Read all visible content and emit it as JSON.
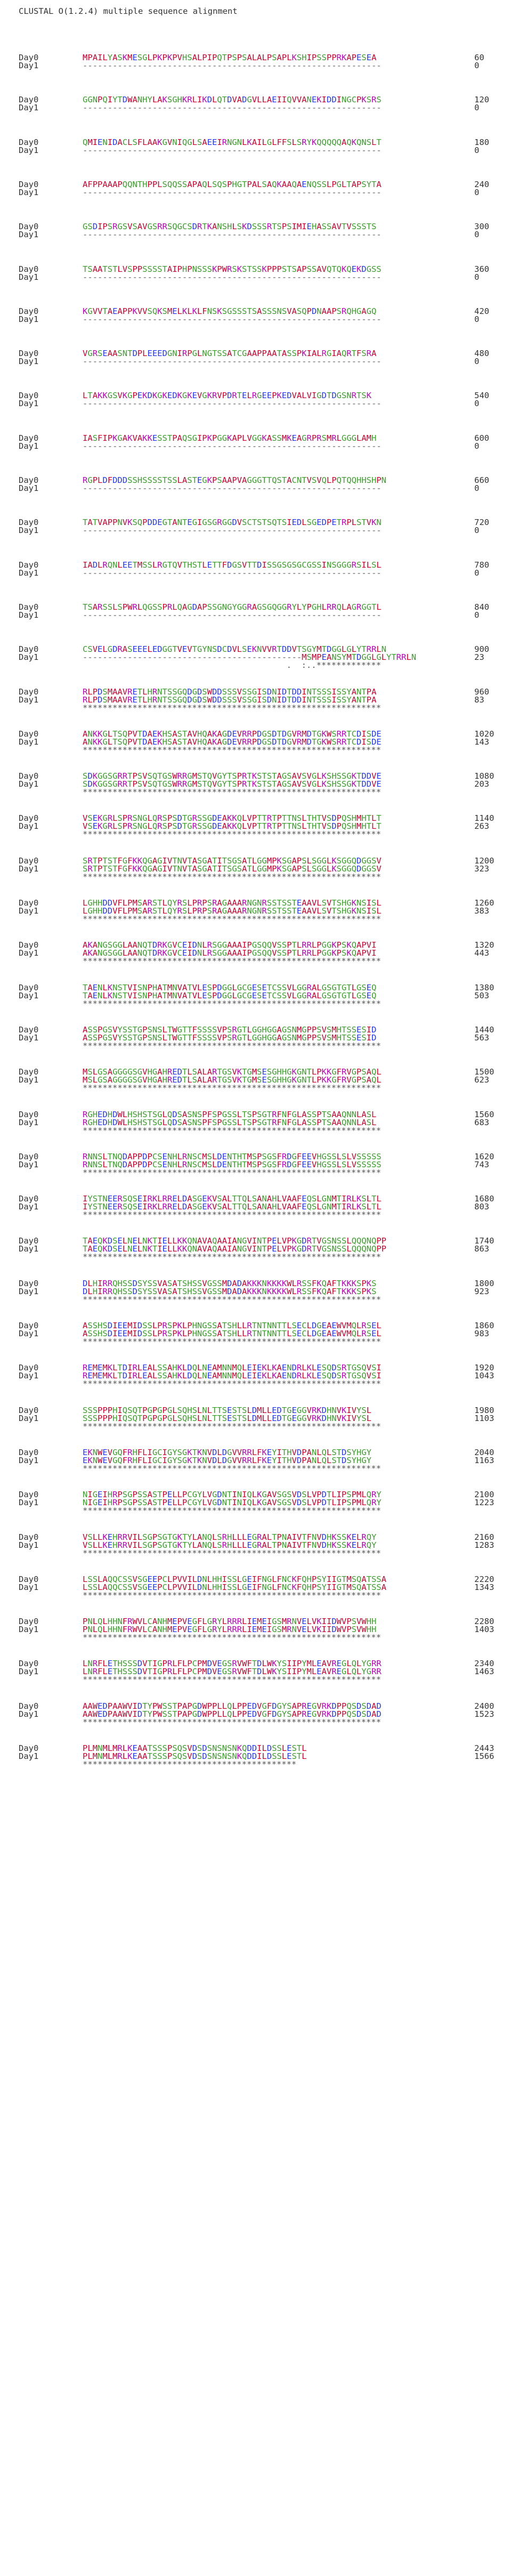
{
  "title": "CLUSTAL O(1.2.4) multiple sequence alignment",
  "residue_colors": {
    "hydrophobic": "#d1002b",
    "basic": "#c000c0",
    "acidic": "#2236ff",
    "polar": "#3aa02a",
    "gap": "#666666"
  },
  "blocks": [
    {
      "rows": [
        {
          "name": "Day0",
          "seq": "MPAILYASKMESGLPKPKPVHSALPIPQTPSPSALALPSAPLKSHIPSSPPRKAPESEA",
          "count": "60"
        },
        {
          "name": "Day1",
          "seq": "------------------------------------------------------------",
          "count": "0"
        }
      ],
      "consensus": ""
    },
    {
      "rows": [
        {
          "name": "Day0",
          "seq": "GGNPQIYTDWANHYLAKSGHKRLIKDLQTDVADGVLLAEIIQVVANEKIDDINGCPKSRS",
          "count": "120"
        },
        {
          "name": "Day1",
          "seq": "------------------------------------------------------------",
          "count": "0"
        }
      ],
      "consensus": ""
    },
    {
      "rows": [
        {
          "name": "Day0",
          "seq": "QMIENIDACLSFLAAKGVNIQGLSAEEIRNGNLKAILGLFFSLSRYKQQQQQAQKQNSLT",
          "count": "180"
        },
        {
          "name": "Day1",
          "seq": "------------------------------------------------------------",
          "count": "0"
        }
      ],
      "consensus": ""
    },
    {
      "rows": [
        {
          "name": "Day0",
          "seq": "AFPPAAAPQQNTHPPLSQQSSAPAQLSQSPHGTPALSAQKAAQAENQSSLPGLTAPSYTA",
          "count": "240"
        },
        {
          "name": "Day1",
          "seq": "------------------------------------------------------------",
          "count": "0"
        }
      ],
      "consensus": ""
    },
    {
      "rows": [
        {
          "name": "Day0",
          "seq": "GSDIPSRGSVSAVGSRRSQGCSDRTKANSHLSKDSSSRTSPSIMIEHASSAVTVSSSTS",
          "count": "300"
        },
        {
          "name": "Day1",
          "seq": "------------------------------------------------------------",
          "count": "0"
        }
      ],
      "consensus": ""
    },
    {
      "rows": [
        {
          "name": "Day0",
          "seq": "TSAATSTLVSPPSSSSTAIPHPNSSSKPWRSKSTSSKPPPSTSAPSSAVQTQKQEKDGSS",
          "count": "360"
        },
        {
          "name": "Day1",
          "seq": "------------------------------------------------------------",
          "count": "0"
        }
      ],
      "consensus": ""
    },
    {
      "rows": [
        {
          "name": "Day0",
          "seq": "KGVVTAEAPPKVVSQKSMELKLKLFNSKSGSSSTSASSSNSVASQPDNAAPSRQHGAGQ",
          "count": "420"
        },
        {
          "name": "Day1",
          "seq": "------------------------------------------------------------",
          "count": "0"
        }
      ],
      "consensus": ""
    },
    {
      "rows": [
        {
          "name": "Day0",
          "seq": "VGRSEAASNTDPLEEEDGNIRPGLNGTSSATCGAAPPAATASSPKIALRGIAQRTFSRA",
          "count": "480"
        },
        {
          "name": "Day1",
          "seq": "------------------------------------------------------------",
          "count": "0"
        }
      ],
      "consensus": ""
    },
    {
      "rows": [
        {
          "name": "Day0",
          "seq": "LTAKKGSVKGPEKDKGKEDKGKEVGKRVPDRTELRGEEPKEDVALVIGDTDGSNRTSK",
          "count": "540"
        },
        {
          "name": "Day1",
          "seq": "------------------------------------------------------------",
          "count": "0"
        }
      ],
      "consensus": ""
    },
    {
      "rows": [
        {
          "name": "Day0",
          "seq": "IASFIPKGAKVAKKESSTPAQSGIPKPGGKAPLVGGKASSMKEAGRPRSMRLGGGLAMH",
          "count": "600"
        },
        {
          "name": "Day1",
          "seq": "------------------------------------------------------------",
          "count": "0"
        }
      ],
      "consensus": ""
    },
    {
      "rows": [
        {
          "name": "Day0",
          "seq": "RGPLDFDDDSSHSSSSTSSLASTEGKPSAAPVAGGGTTQSTACNTVSVQLPQTQQHHSHPN",
          "count": "660"
        },
        {
          "name": "Day1",
          "seq": "------------------------------------------------------------",
          "count": "0"
        }
      ],
      "consensus": ""
    },
    {
      "rows": [
        {
          "name": "Day0",
          "seq": "TATVAPPNVKSQPDDEGTANTEGIGSGRGGDVSCTSTSQTSIEDLSGEDPETRPLSTVKN",
          "count": "720"
        },
        {
          "name": "Day1",
          "seq": "------------------------------------------------------------",
          "count": "0"
        }
      ],
      "consensus": ""
    },
    {
      "rows": [
        {
          "name": "Day0",
          "seq": "IADLRQNLEETMSSLRGTQVTHSTLETTFDGSVTTDISSGSGSGCGSSINSGGGRSILSL",
          "count": "780"
        },
        {
          "name": "Day1",
          "seq": "------------------------------------------------------------",
          "count": "0"
        }
      ],
      "consensus": ""
    },
    {
      "rows": [
        {
          "name": "Day0",
          "seq": "TSARSSLSPWRLQGSSPRLQAGDAPSSGNGYGGRAGSGQGGRYLYPGHLRRQLAGRGGTL",
          "count": "840",
          "hidden_mark": ""
        },
        {
          "name": "Day1",
          "seq": "------------------------------------------------------------",
          "count": "0"
        }
      ],
      "consensus": ""
    },
    {
      "rows": [
        {
          "name": "Day0",
          "seq": "CSVELGDRASEEELEDGGTVEVTGYNSDCDVLSEKNVVRTDDVTSGYMTDGGLGLYTRRLN",
          "count": "900"
        },
        {
          "name": "Day1",
          "seq": "--------------------------------------------MSMPEANSYMTDGGLGLYTRRLN",
          "count": "23"
        }
      ],
      "consensus": "                                         .  :..*************"
    },
    {
      "rows": [
        {
          "name": "Day0",
          "seq": "RLPDSMAAVRETLHRNTSSGQDGDSWDDSSSVSSGISDNIDTDDINTSSSISSYANTPA",
          "count": "960"
        },
        {
          "name": "Day1",
          "seq": "RLPDSMAAVRETLHRNTSSGQDGDSWDDSSSVSSGISDNIDTDDINTSSSISSYANTPA",
          "count": "83"
        }
      ],
      "consensus": "************************************************************"
    },
    {
      "rows": [
        {
          "name": "Day0",
          "seq": "ANKKGLTSQPVTDAEKHSASTAVHQAKAGDEVRRPDGSDTDGVRMDTGKWSRRTCDISDE",
          "count": "1020"
        },
        {
          "name": "Day1",
          "seq": "ANKKGLTSQPVTDAEKHSASTAVHQAKAGDEVRRPDGSDTDGVRMDTGKWSRRTCDISDE",
          "count": "143"
        }
      ],
      "consensus": "************************************************************"
    },
    {
      "rows": [
        {
          "name": "Day0",
          "seq": "SDKGGSGRRTPSVSQTGSWRRGMSTQVGYTSPRTKSTSTAGSAVSVGLKSHSSGKTDDVE",
          "count": "1080"
        },
        {
          "name": "Day1",
          "seq": "SDKGGSGRRTPSVSQTGSWRRGMSTQVGYTSPRTKSTSTAGSAVSVGLKSHSSGKTDDVE",
          "count": "203"
        }
      ],
      "consensus": "************************************************************"
    },
    {
      "rows": [
        {
          "name": "Day0",
          "seq": "VSEKGRLSPRSNGLQRSPSDTGRSSGDEAKKQLVPTTRTPTTNSLTHTVSDPQSHMHTLT",
          "count": "1140"
        },
        {
          "name": "Day1",
          "seq": "VSEKGRLSPRSNGLQRSPSDTGRSSGDEAKKQLVPTTRTPTTNSLTHTVSDPQSHMHTLT",
          "count": "263"
        }
      ],
      "consensus": "************************************************************"
    },
    {
      "rows": [
        {
          "name": "Day0",
          "seq": "SRTPTSTFGFKKQGAGIVTNVTASGATITSGSATLGGMPKSGAPSLSGGLKSGGQDGGSV",
          "count": "1200"
        },
        {
          "name": "Day1",
          "seq": "SRTPTSTFGFKKQGAGIVTNVTASGATITSGSATLGGMPKSGAPSLSGGLKSGGQDGGSV",
          "count": "323"
        }
      ],
      "consensus": "************************************************************"
    },
    {
      "rows": [
        {
          "name": "Day0",
          "seq": "LGHHDDVFLPMSARSTLQYRSLPRPSRAGAAARNGNRSSTSSTEAAVLSVTSHGKNSISL",
          "count": "1260"
        },
        {
          "name": "Day1",
          "seq": "LGHHDDVFLPMSARSTLQYRSLPRPSRAGAAARNGNRSSTSSTEAAVLSVTSHGKNSISL",
          "count": "383"
        }
      ],
      "consensus": "************************************************************"
    },
    {
      "rows": [
        {
          "name": "Day0",
          "seq": "AKANGSGGLAANQTDRKGVCEIDNLRSGGAAAIPGSQQVSSPTLRRLPGGKPSKQAPVI",
          "count": "1320"
        },
        {
          "name": "Day1",
          "seq": "AKANGSGGLAANQTDRKGVCEIDNLRSGGAAAIPGSQQVSSPTLRRLPGGKPSKQAPVI",
          "count": "443"
        }
      ],
      "consensus": "************************************************************"
    },
    {
      "rows": [
        {
          "name": "Day0",
          "seq": "TAENLKNSTVISNPHATMNVATVLESPDGGLGCGESETCSSVLGGRALGSGTGTLGSEQ",
          "count": "1380"
        },
        {
          "name": "Day1",
          "seq": "TAENLKNSTVISNPHATMNVATVLESPDGGLGCGESETCSSVLGGRALGSGTGTLGSEQ",
          "count": "503"
        }
      ],
      "consensus": "************************************************************"
    },
    {
      "rows": [
        {
          "name": "Day0",
          "seq": "ASSPGSVYSSTGPSNSLTWGTTFSSSSVPSRGTLGGHGGAGSNMGPPSVSMHTSSESID",
          "count": "1440"
        },
        {
          "name": "Day1",
          "seq": "ASSPGSVYSSTGPSNSLTWGTTFSSSSVPSRGTLGGHGGAGSNMGPPSVSMHTSSESID",
          "count": "563"
        }
      ],
      "consensus": "************************************************************"
    },
    {
      "rows": [
        {
          "name": "Day0",
          "seq": "MSLGSAGGGGSGVHGAHREDTLSALARTGSVKTGMSESGHHGKGNTLPKKGFRVGPSAQL",
          "count": "1500"
        },
        {
          "name": "Day1",
          "seq": "MSLGSAGGGGSGVHGAHREDTLSALARTGSVKTGMSESGHHGKGNTLPKKGFRVGPSAQL",
          "count": "623"
        }
      ],
      "consensus": "************************************************************"
    },
    {
      "rows": [
        {
          "name": "Day0",
          "seq": "RGHEDHDWLHSHSTSGLQDSASNSPFSPGSSLTSPSGTRFNFGLASSPTSAAQNNLASL",
          "count": "1560"
        },
        {
          "name": "Day1",
          "seq": "RGHEDHDWLHSHSTSGLQDSASNSPFSPGSSLTSPSGTRFNFGLASSPTSAAQNNLASL",
          "count": "683"
        }
      ],
      "consensus": "************************************************************"
    },
    {
      "rows": [
        {
          "name": "Day0",
          "seq": "RNNSLTNQDAPPDPCSENHLRNSCMSLDENTHTMSPSGSFRDGFEEVHGSSLSLVSSSSS",
          "count": "1620"
        },
        {
          "name": "Day1",
          "seq": "RNNSLTNQDAPPDPCSENHLRNSCMSLDENTHTMSPSGSFRDGFEEVHGSSLSLVSSSSS",
          "count": "743"
        }
      ],
      "consensus": "************************************************************"
    },
    {
      "rows": [
        {
          "name": "Day0",
          "seq": "IYSTNEERSQSEIRKLRRELDASGEKVSALTTQLSANAHLVAAFEQSLGNMTIRLKSLTL",
          "count": "1680"
        },
        {
          "name": "Day1",
          "seq": "IYSTNEERSQSEIRKLRRELDASGEKVSALTTQLSANAHLVAAFEQSLGNMTIRLKSLTL",
          "count": "803"
        }
      ],
      "consensus": "************************************************************"
    },
    {
      "rows": [
        {
          "name": "Day0",
          "seq": "TAEQKDSELNELNKTIELLKKQNAVAQAAIANGVINTPELVPKGDRTVGSNSSLQQQNQPP",
          "count": "1740"
        },
        {
          "name": "Day1",
          "seq": "TAEQKDSELNELNKTIELLKKQNAVAQAAIANGVINTPELVPKGDRTVGSNSSLQQQNQPP",
          "count": "863"
        }
      ],
      "consensus": "************************************************************"
    },
    {
      "rows": [
        {
          "name": "Day0",
          "seq": "DLHIRRQHSSDSYSSVASATSHSSVGSSMDADAKKKNKKKKWLRSSFKQAFTKKKSPKS",
          "count": "1800"
        },
        {
          "name": "Day1",
          "seq": "DLHIRRQHSSDSYSSVASATSHSSVGSSMDADAKKKNKKKKWLRSSFKQAFTKKKSPKS",
          "count": "923"
        }
      ],
      "consensus": "************************************************************"
    },
    {
      "rows": [
        {
          "name": "Day0",
          "seq": "ASSHSDIEEMIDSSLPRSPKLPHNGSSATSHLLRTNTNNTTLSECLDGEAEWVMQLRSEL",
          "count": "1860"
        },
        {
          "name": "Day1",
          "seq": "ASSHSDIEEMIDSSLPRSPKLPHNGSSATSHLLRTNTNNTTLSECLDGEAEWVMQLRSEL",
          "count": "983"
        }
      ],
      "consensus": "************************************************************"
    },
    {
      "rows": [
        {
          "name": "Day0",
          "seq": "REMEMKLTDIRLEALSSAHKLDQLNEAMNNMQLEIEKLKAENDRLKLESQDSRTGSQVSI",
          "count": "1920"
        },
        {
          "name": "Day1",
          "seq": "REMEMKLTDIRLEALSSAHKLDQLNEAMNNMQLEIEKLKAENDRLKLESQDSRTGSQVSI",
          "count": "1043"
        }
      ],
      "consensus": "************************************************************"
    },
    {
      "rows": [
        {
          "name": "Day0",
          "seq": "SSSPPPHIQSQTPGPGPGLSQHSLNLTTSESTSLDMLLEDTGEGGVRKDHNVKIVYSL",
          "count": "1980"
        },
        {
          "name": "Day1",
          "seq": "SSSPPPHIQSQTPGPGPGLSQHSLNLTTSESTSLDMLLEDTGEGGVRKDHNVKIVYSL",
          "count": "1103"
        }
      ],
      "consensus": "************************************************************"
    },
    {
      "rows": [
        {
          "name": "Day0",
          "seq": "EKNWEVGQFRHFLIGCIGYSGKTKNVDLDGVVRRLFKEYITHVDPANLQLSTDSYHGY",
          "count": "2040"
        },
        {
          "name": "Day1",
          "seq": "EKNWEVGQFRHFLIGCIGYSGKTKNVDLDGVVRRLFKEYITHVDPANLQLSTDSYHGY",
          "count": "1163"
        }
      ],
      "consensus": "************************************************************"
    },
    {
      "rows": [
        {
          "name": "Day0",
          "seq": "NIGEIHRPSGPSSASTPELLPCGYLVGDNTINIQLKGAVSGSVDSLVPDTLIPSPMLQRY",
          "count": "2100"
        },
        {
          "name": "Day1",
          "seq": "NIGEIHRPSGPSSASTPELLPCGYLVGDNTINIQLKGAVSGSVDSLVPDTLIPSPMLQRY",
          "count": "1223"
        }
      ],
      "consensus": "************************************************************"
    },
    {
      "rows": [
        {
          "name": "Day0",
          "seq": "VSLLKEHRRVILSGPSGTGKTYLANQLSRHLLLEGRALTPNAIVTFNVDHKSSKELRQY",
          "count": "2160"
        },
        {
          "name": "Day1",
          "seq": "VSLLKEHRRVILSGPSGTGKTYLANQLSRHLLLEGRALTPNAIVTFNVDHKSSKELRQY",
          "count": "1283"
        }
      ],
      "consensus": "************************************************************"
    },
    {
      "rows": [
        {
          "name": "Day0",
          "seq": "LSSLAQQCSSVSGEEPCLPVVILDNLHHISSLGEIFNGLFNCKFQHPSYIIGTMSQATSSA",
          "count": "2220"
        },
        {
          "name": "Day1",
          "seq": "LSSLAQQCSSVSGEEPCLPVVILDNLHHISSLGEIFNGLFNCKFQHPSYIIGTMSQATSSA",
          "count": "1343"
        }
      ],
      "consensus": "************************************************************"
    },
    {
      "rows": [
        {
          "name": "Day0",
          "seq": "PNLQLHHNFRWVLCANHMEPVEGFLGRYLRRRLIEMEIGSMRNVELVKIIDWVPSVWHH",
          "count": "2280"
        },
        {
          "name": "Day1",
          "seq": "PNLQLHHNFRWVLCANHMEPVEGFLGRYLRRRLIEMEIGSMRNVELVKIIDWVPSVWHH",
          "count": "1403"
        }
      ],
      "consensus": "************************************************************"
    },
    {
      "rows": [
        {
          "name": "Day0",
          "seq": "LNRFLETHSSSDVTIGPRLFLPCPMDVEGSRVWFTDLWKYSIIPYMLEAVREGLQLYGRR",
          "count": "2340"
        },
        {
          "name": "Day1",
          "seq": "LNRFLETHSSSDVTIGPRLFLPCPMDVEGSRVWFTDLWKYSIIPYMLEAVREGLQLYGRR",
          "count": "1463"
        }
      ],
      "consensus": "************************************************************"
    },
    {
      "rows": [
        {
          "name": "Day0",
          "seq": "AAWEDPAAWVIDTYPWSSTPAPGDWPPLLQLPPEDVGFDGYSAPREGVRKDPPQSDSDAD",
          "count": "2400"
        },
        {
          "name": "Day1",
          "seq": "AAWEDPAAWVIDTYPWSSTPAPGDWPPLLQLPPEDVGFDGYSAPREGVRKDPPQSDSDAD",
          "count": "1523"
        }
      ],
      "consensus": "************************************************************"
    },
    {
      "rows": [
        {
          "name": "Day0",
          "seq": "PLMNMLMRLKEAATSSSPSQSVDSDSNSNSNKQDDILDSSLESTL",
          "count": "2443"
        },
        {
          "name": "Day1",
          "seq": "PLMNMLMRLKEAATSSSPSQSVDSDSNSNSNKQDDILDSSLESTL",
          "count": "1566"
        }
      ],
      "consensus": "*******************************************"
    }
  ]
}
